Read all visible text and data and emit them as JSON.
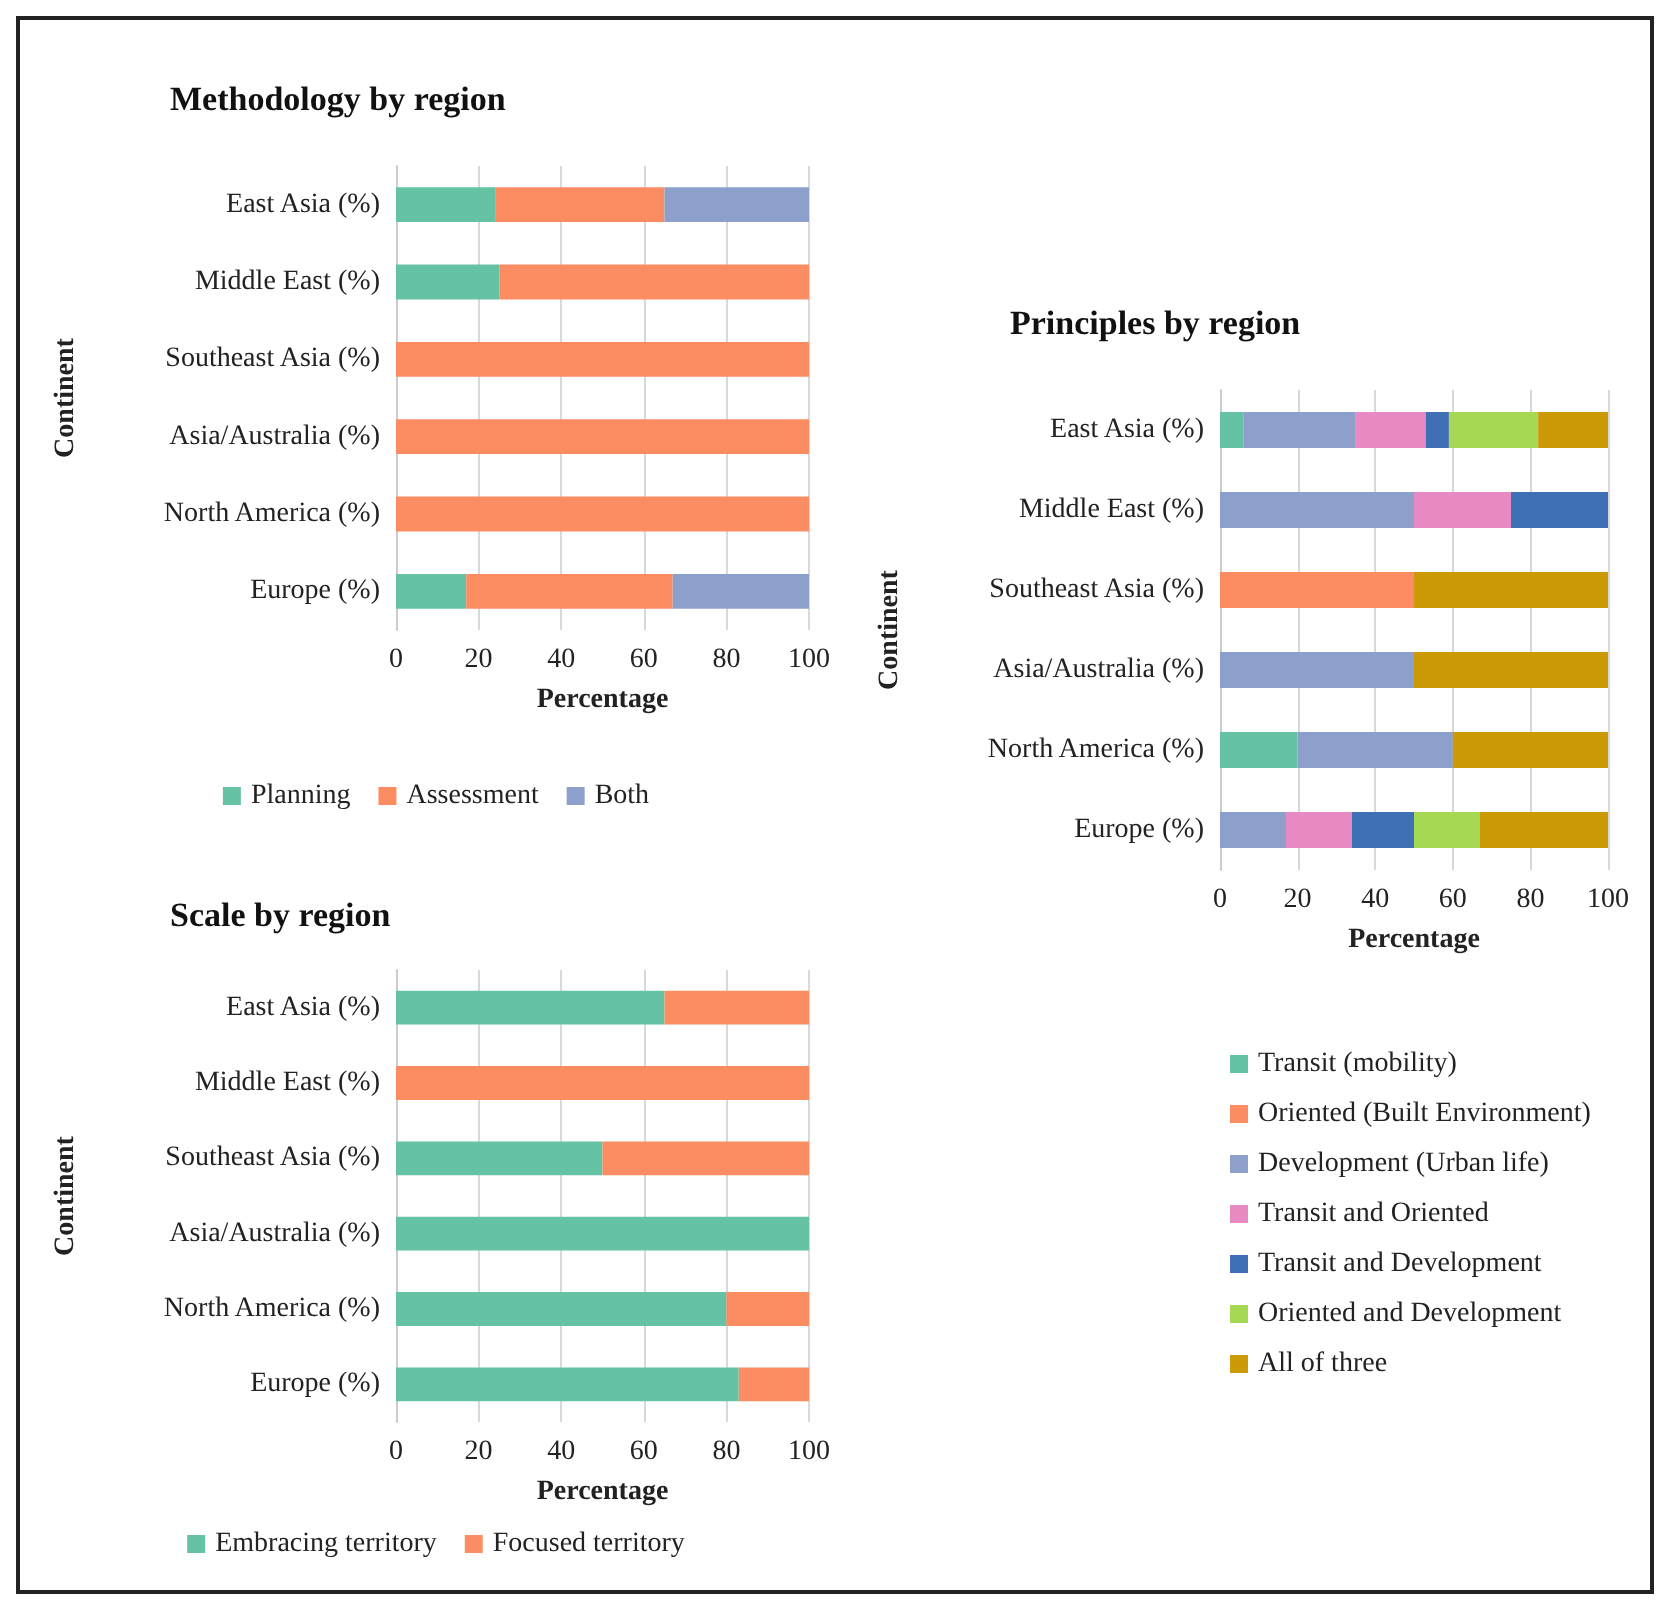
{
  "chart_data": [
    {
      "type": "bar",
      "orientation": "horizontal",
      "stacked": true,
      "title": "Methodology by region",
      "xlabel": "Percentage",
      "ylabel": "Continent",
      "categories": [
        "East Asia (%)",
        "Middle East (%)",
        "Southeast Asia (%)",
        "Asia/Australia (%)",
        "North America (%)",
        "Europe (%)"
      ],
      "series": [
        {
          "name": "Planning",
          "color": "#66c2a5",
          "values": [
            24,
            25,
            0,
            0,
            0,
            17
          ]
        },
        {
          "name": "Assessment",
          "color": "#fc8d62",
          "values": [
            41,
            75,
            100,
            100,
            100,
            50
          ]
        },
        {
          "name": "Both",
          "color": "#8da0cb",
          "values": [
            35,
            0,
            0,
            0,
            0,
            33
          ]
        }
      ],
      "xlim": [
        0,
        100
      ],
      "xticks": [
        0,
        20,
        40,
        60,
        80,
        100
      ],
      "grid": "x",
      "legend": "bottom"
    },
    {
      "type": "bar",
      "orientation": "horizontal",
      "stacked": true,
      "title": "Principles by region",
      "xlabel": "Percentage",
      "ylabel": "Continent",
      "categories": [
        "East Asia (%)",
        "Middle East (%)",
        "Southeast Asia (%)",
        "Asia/Australia (%)",
        "North America (%)",
        "Europe (%)"
      ],
      "series": [
        {
          "name": "Transit (mobility)",
          "color": "#66c2a5",
          "values": [
            6,
            0,
            0,
            0,
            20,
            0
          ]
        },
        {
          "name": "Oriented (Built Environment)",
          "color": "#fc8d62",
          "values": [
            0,
            0,
            50,
            0,
            0,
            0
          ]
        },
        {
          "name": "Development (Urban life)",
          "color": "#8da0cb",
          "values": [
            29,
            50,
            0,
            50,
            40,
            17
          ]
        },
        {
          "name": "Transit and Oriented",
          "color": "#e78ac3",
          "values": [
            18,
            25,
            0,
            0,
            0,
            17
          ]
        },
        {
          "name": "Transit and Development",
          "color": "#3f6fb5",
          "values": [
            6,
            25,
            0,
            0,
            0,
            16
          ]
        },
        {
          "name": "Oriented and Development",
          "color": "#a6d854",
          "values": [
            23,
            0,
            0,
            0,
            0,
            17
          ]
        },
        {
          "name": "All of three",
          "color": "#cc9a06",
          "values": [
            18,
            0,
            50,
            50,
            40,
            33
          ]
        }
      ],
      "xlim": [
        0,
        100
      ],
      "xticks": [
        0,
        20,
        40,
        60,
        80,
        100
      ],
      "grid": "x",
      "legend": "bottom"
    },
    {
      "type": "bar",
      "orientation": "horizontal",
      "stacked": true,
      "title": "Scale by region",
      "xlabel": "Percentage",
      "ylabel": "Continent",
      "categories": [
        "East Asia (%)",
        "Middle East (%)",
        "Southeast Asia (%)",
        "Asia/Australia (%)",
        "North America (%)",
        "Europe (%)"
      ],
      "series": [
        {
          "name": "Embracing territory",
          "color": "#66c2a5",
          "values": [
            65,
            0,
            50,
            100,
            80,
            83
          ]
        },
        {
          "name": "Focused territory",
          "color": "#fc8d62",
          "values": [
            35,
            100,
            50,
            0,
            20,
            17
          ]
        }
      ],
      "xlim": [
        0,
        100
      ],
      "xticks": [
        0,
        20,
        40,
        60,
        80,
        100
      ],
      "grid": "x",
      "legend": "bottom"
    }
  ]
}
